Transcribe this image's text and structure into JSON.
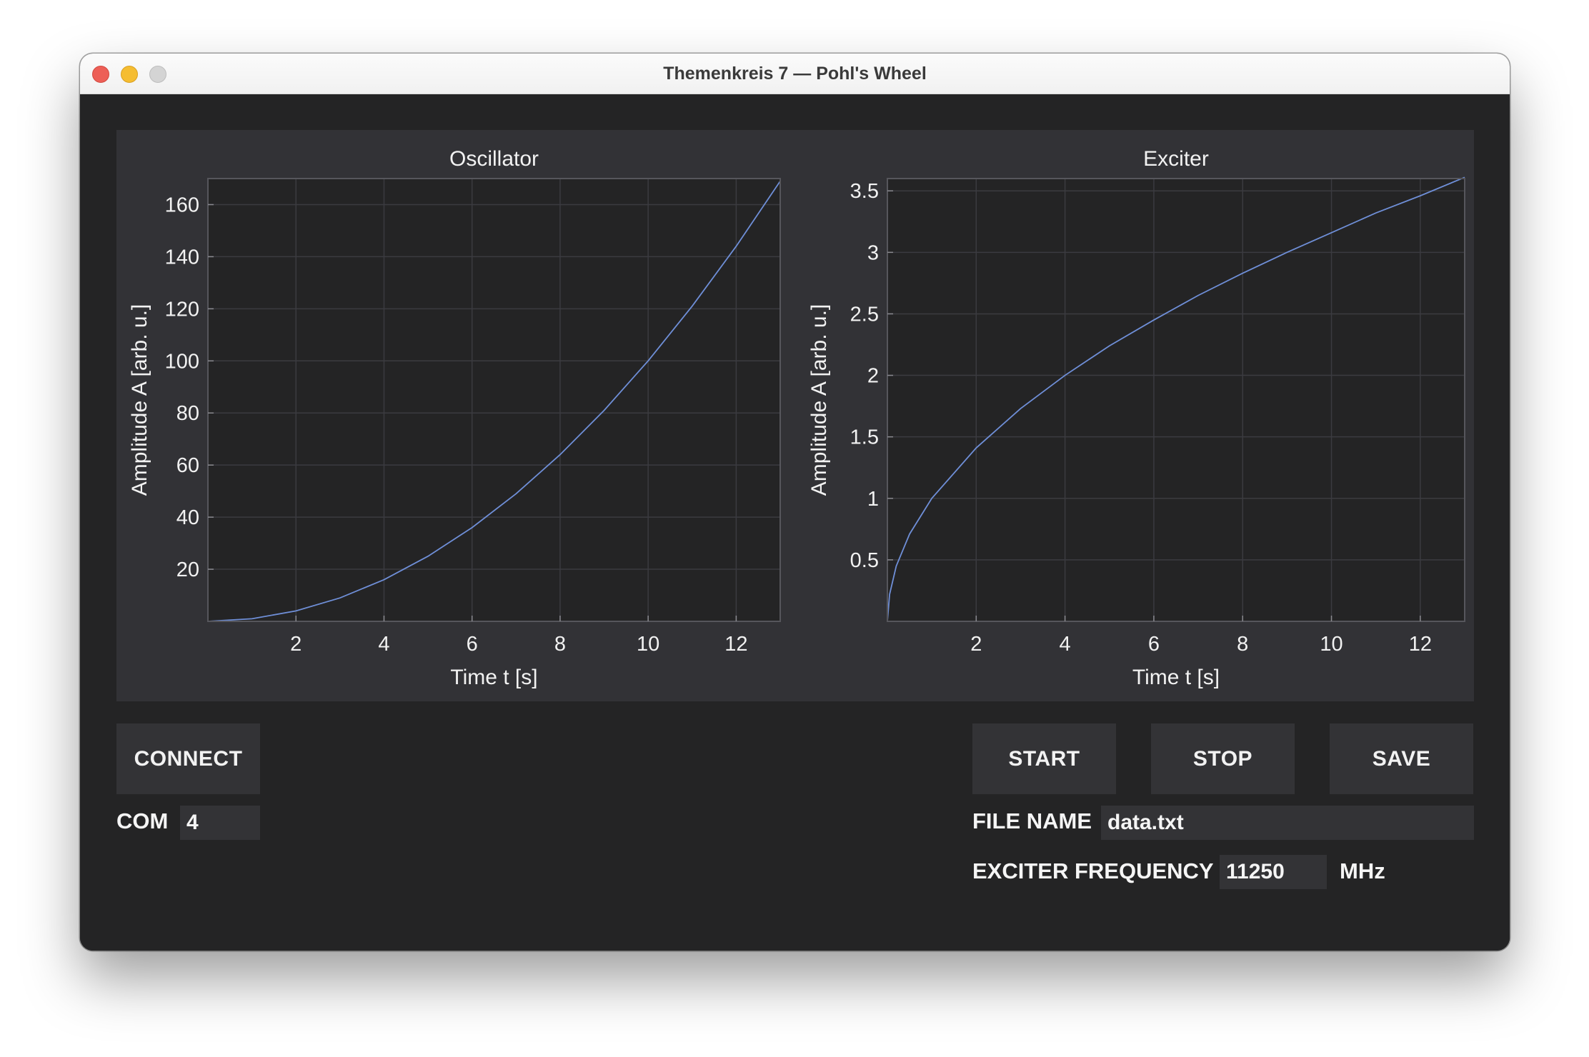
{
  "window": {
    "title": "Themenkreis 7 — Pohl's Wheel"
  },
  "colors": {
    "plot_bg": "#323236",
    "axes_bg": "#242425",
    "line": "#6f8fd8",
    "grid": "#3b3b40",
    "text": "#f2f2f2"
  },
  "chart_data": [
    {
      "type": "line",
      "title": "Oscillator",
      "xlabel": "Time t [s]",
      "ylabel": "Amplitude A [arb. u.]",
      "xlim": [
        0,
        13
      ],
      "ylim": [
        0,
        170
      ],
      "xticks": [
        2,
        4,
        6,
        8,
        10,
        12
      ],
      "yticks": [
        20,
        40,
        60,
        80,
        100,
        120,
        140,
        160
      ],
      "grid": true,
      "series": [
        {
          "x": [
            0,
            1,
            2,
            3,
            4,
            5,
            6,
            7,
            8,
            9,
            10,
            11,
            12,
            13
          ],
          "y": [
            0,
            1,
            4,
            9,
            16,
            25,
            36,
            49,
            64,
            81,
            100,
            121,
            144,
            169
          ]
        }
      ]
    },
    {
      "type": "line",
      "title": "Exciter",
      "xlabel": "Time t [s]",
      "ylabel": "Amplitude A [arb. u.]",
      "xlim": [
        0,
        13
      ],
      "ylim": [
        0,
        3.6
      ],
      "xticks": [
        2,
        4,
        6,
        8,
        10,
        12
      ],
      "yticks": [
        0.5,
        1,
        1.5,
        2,
        2.5,
        3,
        3.5
      ],
      "grid": true,
      "series": [
        {
          "x": [
            0,
            0.05,
            0.2,
            0.5,
            1,
            2,
            3,
            4,
            5,
            6,
            7,
            8,
            9,
            10,
            11,
            12,
            13
          ],
          "y": [
            0,
            0.22,
            0.45,
            0.71,
            1,
            1.41,
            1.73,
            2,
            2.24,
            2.45,
            2.65,
            2.83,
            3,
            3.16,
            3.32,
            3.46,
            3.61
          ]
        }
      ]
    }
  ],
  "controls": {
    "connect_label": "CONNECT",
    "start_label": "START",
    "stop_label": "STOP",
    "save_label": "SAVE",
    "com_label": "COM",
    "com_value": "4",
    "file_name_label": "FILE NAME",
    "file_name_value": "data.txt",
    "exciter_frequency_label": "EXCITER FREQUENCY",
    "exciter_frequency_value": "11250",
    "exciter_frequency_unit": "MHz"
  }
}
